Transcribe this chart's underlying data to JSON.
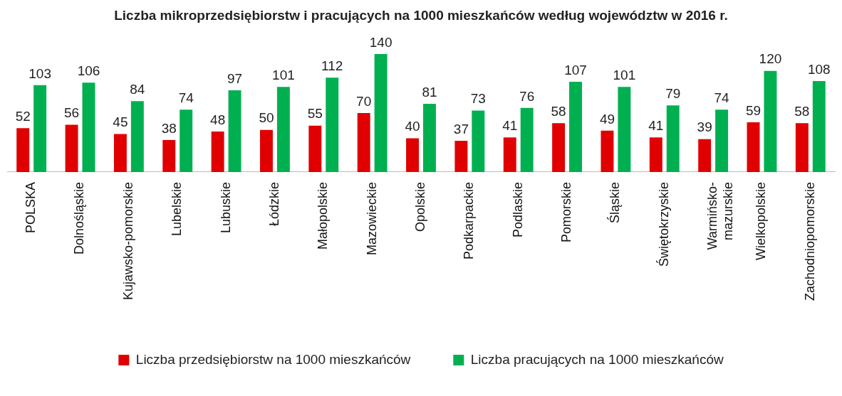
{
  "chart_data": {
    "type": "bar",
    "title": "Liczba mikroprzedsiębiorstw i pracujących na 1000 mieszkańców według województw w 2016 r.",
    "categories": [
      "POLSKA",
      "Dolnośląskie",
      "Kujawsko-pomorskie",
      "Lubelskie",
      "Lubuskie",
      "Łódzkie",
      "Małopolskie",
      "Mazowieckie",
      "Opolskie",
      "Podkarpackie",
      "Podlaskie",
      "Pomorskie",
      "Śląskie",
      "Świętokrzyskie",
      "Warmińsko-\nmazurskie",
      "Wielkopolskie",
      "Zachodniopomorskie"
    ],
    "series": [
      {
        "name": "Liczba przedsiębiorstw na 1000 mieszkańców",
        "color": "#e00000",
        "values": [
          52,
          56,
          45,
          38,
          48,
          50,
          55,
          70,
          40,
          37,
          41,
          58,
          49,
          41,
          39,
          59,
          58
        ]
      },
      {
        "name": "Liczba pracujących na 1000 mieszkańców",
        "color": "#00b050",
        "values": [
          103,
          106,
          84,
          74,
          97,
          101,
          112,
          140,
          81,
          73,
          76,
          107,
          101,
          79,
          74,
          120,
          108
        ]
      }
    ],
    "data_labels": true,
    "legend": "bottom",
    "grid": false
  }
}
